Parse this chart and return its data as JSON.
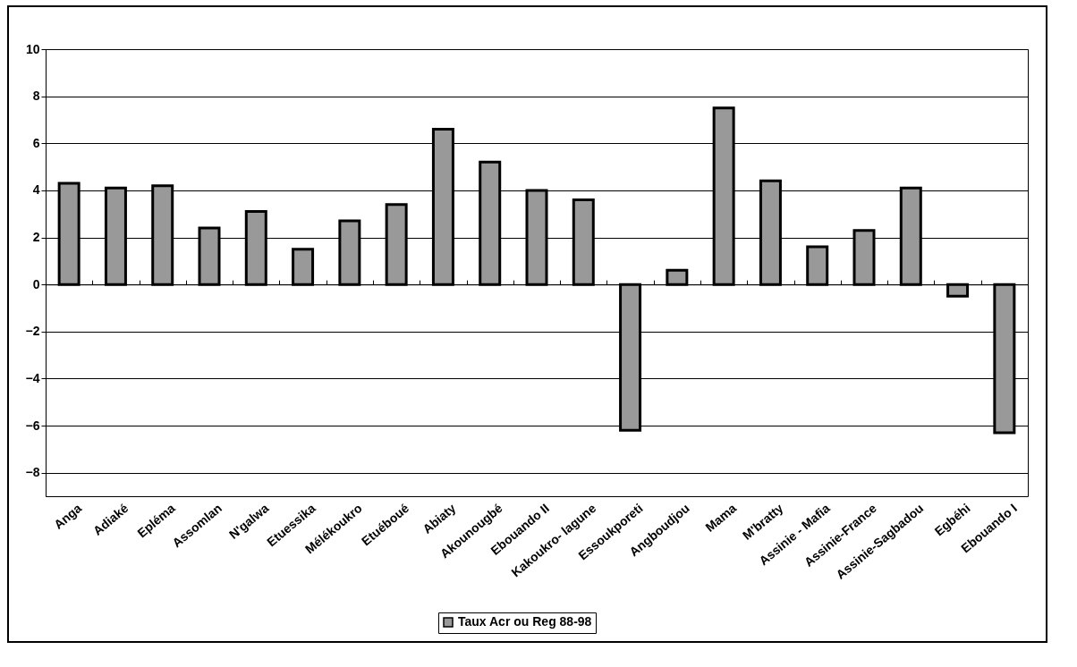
{
  "chart_data": {
    "type": "bar",
    "categories": [
      "Anga",
      "Adiaké",
      "Epléma",
      "Assomlan",
      "N'galwa",
      "Etuessika",
      "Mélékoukro",
      "Etuéboué",
      "Abiaty",
      "Akounougbé",
      "Ebouando II",
      "Kakoukro- lagune",
      "Essoukporeti",
      "Angboudjou",
      "Mama",
      "M'bratty",
      "Assinie - Mafia",
      "Assinie-France",
      "Assinie-Sagbadou",
      "Egbéhi",
      "Ebouando I"
    ],
    "series": [
      {
        "name": "Taux Acr ou Reg 88-98",
        "color": "#999999",
        "values": [
          4.3,
          4.1,
          4.2,
          2.4,
          3.1,
          1.5,
          2.7,
          3.4,
          6.6,
          5.2,
          4.0,
          3.6,
          -6.2,
          0.6,
          7.5,
          4.4,
          1.6,
          2.3,
          4.1,
          -0.5,
          -6.3
        ]
      }
    ],
    "ylim": [
      -9,
      10
    ],
    "yticks": [
      -8,
      -6,
      -4,
      -2,
      0,
      2,
      4,
      6,
      8,
      10
    ],
    "grid": "y",
    "legend": "bottom"
  }
}
